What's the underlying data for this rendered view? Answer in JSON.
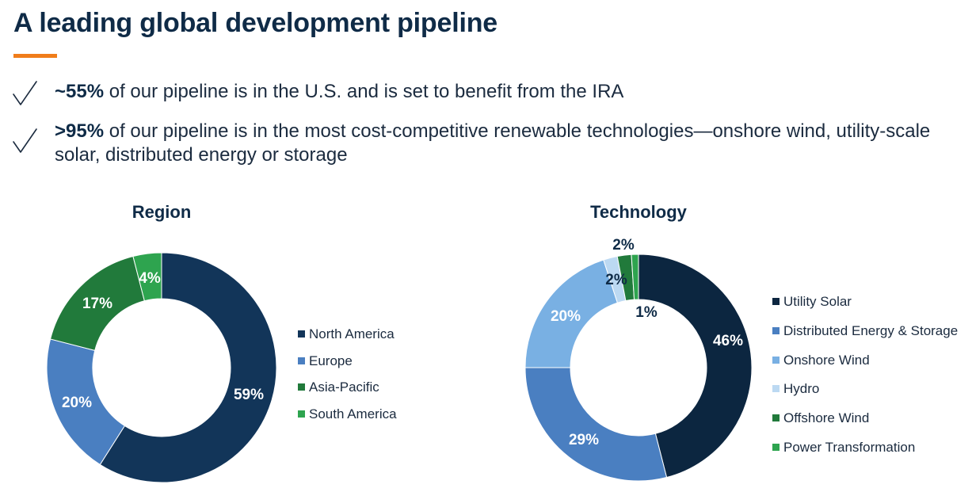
{
  "title": "A leading global development pipeline",
  "colors": {
    "accent": "#f07d1a",
    "navy": "#0f2b47",
    "dark_navy": "#0c2640",
    "mid_blue": "#4a7fc1",
    "light_blue": "#79b0e3",
    "pale_blue": "#bcd9f2",
    "dark_green": "#217a3b",
    "green": "#2ea44f"
  },
  "bullets": [
    {
      "icon": "checkmark-icon",
      "lead": "~55%",
      "text": " of our pipeline is in the U.S. and is set to benefit from the IRA"
    },
    {
      "icon": "checkmark-icon",
      "lead": ">95%",
      "text": " of our pipeline is in the most cost-competitive renewable technologies—onshore wind, utility-scale solar, distributed energy or storage"
    }
  ],
  "chart_data": [
    {
      "type": "pie",
      "title": "Region",
      "categories": [
        "North America",
        "Europe",
        "Asia-Pacific",
        "South America"
      ],
      "values": [
        59,
        20,
        17,
        4
      ],
      "labels": [
        "59%",
        "20%",
        "17%",
        "4%"
      ],
      "colors": [
        "#123559",
        "#4a7fc1",
        "#217a3b",
        "#2ea44f"
      ],
      "legend": "right"
    },
    {
      "type": "pie",
      "title": "Technology",
      "categories": [
        "Utility Solar",
        "Distributed Energy & Storage",
        "Onshore Wind",
        "Hydro",
        "Offshore Wind",
        "Power Transformation"
      ],
      "values": [
        46,
        29,
        20,
        2,
        2,
        1
      ],
      "labels": [
        "46%",
        "29%",
        "20%",
        "2%",
        "2%",
        "1%"
      ],
      "colors": [
        "#0c2640",
        "#4a7fc1",
        "#79b0e3",
        "#bcd9f2",
        "#217a3b",
        "#2ea44f"
      ],
      "legend": "right"
    }
  ]
}
